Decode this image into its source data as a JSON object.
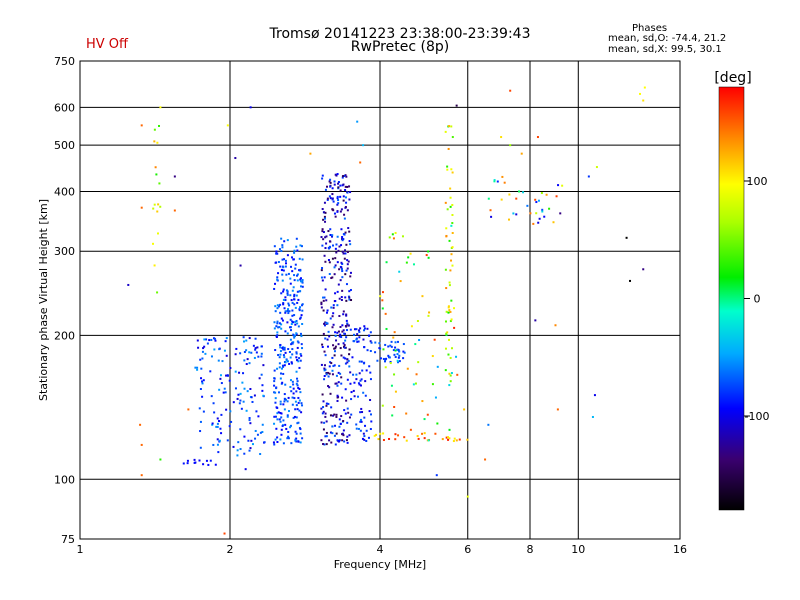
{
  "header": {
    "title_line1": "Tromsø 20141223 23:38:00-23:39:43",
    "title_line2": "RwPretec (8p)",
    "status": "HV Off",
    "status_color": "#cc0000",
    "phases_title": "Phases",
    "phases_line1": "mean, sd,O: -74.4, 21.2",
    "phases_line2": "mean, sd,X:  99.5, 30.1"
  },
  "chart_data": {
    "type": "scatter",
    "title": "Tromsø 20141223 23:38:00-23:39:43",
    "subtitle": "RwPretec (8p)",
    "xlabel": "Frequency [MHz]",
    "ylabel": "Stationary phase Virtual Height [km]",
    "xscale": "log",
    "yscale": "log",
    "xlim": [
      1,
      16
    ],
    "ylim": [
      75,
      750
    ],
    "xticks": [
      1,
      2,
      4,
      6,
      8,
      10,
      16
    ],
    "xtick_labels": [
      "1",
      "2",
      "4",
      "6",
      "8",
      "10",
      "16"
    ],
    "xgrid": [
      2,
      4,
      6,
      8,
      10
    ],
    "yticks": [
      75,
      100,
      200,
      300,
      400,
      500,
      600,
      750
    ],
    "ytick_labels": [
      "75",
      "100",
      "200",
      "300",
      "400",
      "500",
      "600",
      "750"
    ],
    "ygrid": [
      100,
      200,
      300,
      400,
      500,
      600
    ],
    "grid": true,
    "colorbar": {
      "label": "[deg]",
      "range": [
        -180,
        180
      ],
      "ticks": [
        100,
        0,
        -100
      ],
      "tick_labels": [
        "100",
        "0",
        "-100"
      ]
    },
    "clusters": [
      {
        "f": [
          2.45,
          2.8
        ],
        "h": [
          118,
          320
        ],
        "phase": [
          -100,
          -50
        ],
        "n": 340
      },
      {
        "f": [
          3.05,
          3.5
        ],
        "h": [
          118,
          440
        ],
        "phase": [
          -150,
          -60
        ],
        "n": 380
      },
      {
        "f": [
          1.7,
          2.35
        ],
        "h": [
          112,
          200
        ],
        "phase": [
          -110,
          -45
        ],
        "n": 160
      },
      {
        "f": [
          1.6,
          1.9
        ],
        "h": [
          107,
          110
        ],
        "phase": [
          -100,
          -90
        ],
        "n": 12
      },
      {
        "f": [
          3.5,
          3.85
        ],
        "h": [
          120,
          210
        ],
        "phase": [
          -110,
          -60
        ],
        "n": 80
      },
      {
        "f": [
          3.9,
          4.5
        ],
        "h": [
          175,
          195
        ],
        "phase": [
          -90,
          -60
        ],
        "n": 40
      },
      {
        "f": [
          3.9,
          6.0
        ],
        "h": [
          120,
          125
        ],
        "phase": [
          100,
          175
        ],
        "n": 30
      },
      {
        "f": [
          4.0,
          5.8
        ],
        "h": [
          120,
          340
        ],
        "phase": [
          -60,
          170
        ],
        "n": 70
      },
      {
        "f": [
          5.4,
          5.6
        ],
        "h": [
          160,
          550
        ],
        "phase": [
          20,
          140
        ],
        "n": 50
      },
      {
        "f": [
          6.5,
          9.3
        ],
        "h": [
          340,
          430
        ],
        "phase": [
          -120,
          170
        ],
        "n": 35
      },
      {
        "f": [
          1.4,
          1.45
        ],
        "h": [
          240,
          550
        ],
        "phase": [
          0,
          160
        ],
        "n": 16
      }
    ],
    "points": [
      {
        "f": 1.25,
        "h": 255,
        "phase": -110
      },
      {
        "f": 1.33,
        "h": 550,
        "phase": 150
      },
      {
        "f": 1.33,
        "h": 370,
        "phase": 150
      },
      {
        "f": 1.32,
        "h": 130,
        "phase": 150
      },
      {
        "f": 1.33,
        "h": 102,
        "phase": 150
      },
      {
        "f": 1.33,
        "h": 118,
        "phase": 150
      },
      {
        "f": 1.45,
        "h": 600,
        "phase": 100
      },
      {
        "f": 1.55,
        "h": 430,
        "phase": -130
      },
      {
        "f": 1.55,
        "h": 365,
        "phase": 150
      },
      {
        "f": 1.45,
        "h": 110,
        "phase": 30
      },
      {
        "f": 1.65,
        "h": 140,
        "phase": 150
      },
      {
        "f": 1.95,
        "h": 77,
        "phase": 160
      },
      {
        "f": 1.98,
        "h": 550,
        "phase": 100
      },
      {
        "f": 2.2,
        "h": 600,
        "phase": -100
      },
      {
        "f": 2.05,
        "h": 470,
        "phase": -120
      },
      {
        "f": 2.1,
        "h": 280,
        "phase": -120
      },
      {
        "f": 2.15,
        "h": 105,
        "phase": -100
      },
      {
        "f": 2.9,
        "h": 480,
        "phase": 130
      },
      {
        "f": 3.6,
        "h": 560,
        "phase": -50
      },
      {
        "f": 3.7,
        "h": 500,
        "phase": -40
      },
      {
        "f": 3.65,
        "h": 460,
        "phase": 150
      },
      {
        "f": 5.7,
        "h": 605,
        "phase": -150
      },
      {
        "f": 5.6,
        "h": 520,
        "phase": 40
      },
      {
        "f": 5.2,
        "h": 102,
        "phase": -80
      },
      {
        "f": 6.0,
        "h": 92,
        "phase": 90
      },
      {
        "f": 7.3,
        "h": 650,
        "phase": 160
      },
      {
        "f": 8.2,
        "h": 215,
        "phase": -120
      },
      {
        "f": 9.0,
        "h": 210,
        "phase": 140
      },
      {
        "f": 9.1,
        "h": 140,
        "phase": 150
      },
      {
        "f": 9.2,
        "h": 360,
        "phase": -130
      },
      {
        "f": 10.7,
        "h": 135,
        "phase": -40
      },
      {
        "f": 10.5,
        "h": 430,
        "phase": -80
      },
      {
        "f": 10.9,
        "h": 450,
        "phase": 80
      },
      {
        "f": 12.5,
        "h": 320,
        "phase": -180
      },
      {
        "f": 12.7,
        "h": 260,
        "phase": -180
      },
      {
        "f": 13.5,
        "h": 275,
        "phase": -130
      },
      {
        "f": 13.3,
        "h": 640,
        "phase": 100
      },
      {
        "f": 13.5,
        "h": 620,
        "phase": 110
      },
      {
        "f": 13.6,
        "h": 660,
        "phase": 100
      },
      {
        "f": 10.8,
        "h": 150,
        "phase": -100
      },
      {
        "f": 6.5,
        "h": 110,
        "phase": 150
      },
      {
        "f": 6.6,
        "h": 130,
        "phase": -60
      },
      {
        "f": 5.9,
        "h": 140,
        "phase": 120
      },
      {
        "f": 7.0,
        "h": 520,
        "phase": 110
      },
      {
        "f": 7.3,
        "h": 500,
        "phase": 60
      },
      {
        "f": 7.7,
        "h": 480,
        "phase": 130
      },
      {
        "f": 8.3,
        "h": 520,
        "phase": 160
      }
    ]
  }
}
